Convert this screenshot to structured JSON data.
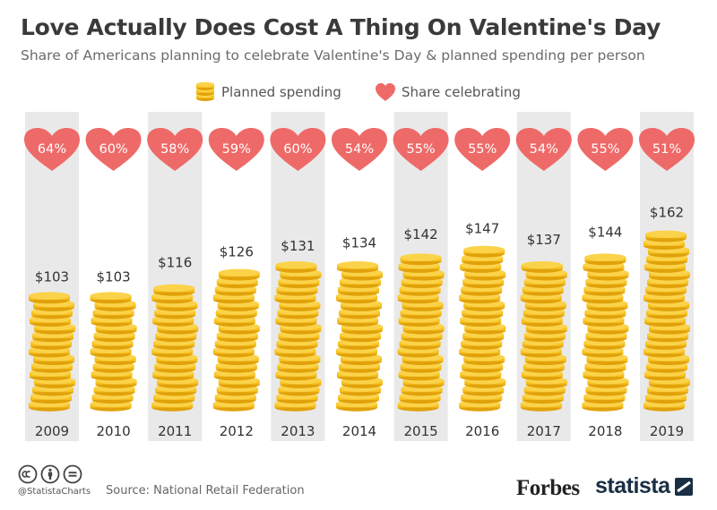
{
  "title": "Love Actually Does Cost A Thing On Valentine's Day",
  "subtitle": "Share of Americans planning to celebrate Valentine's Day & planned spending per person",
  "legend": {
    "spending_label": "Planned spending",
    "share_label": "Share celebrating",
    "spending_icon": "coin-stack-icon",
    "share_icon": "heart-icon"
  },
  "colors": {
    "heart": "#ee6a68",
    "coin": "#f6bf1e",
    "coin_dark": "#e0a10a",
    "column_shade": "#e9e9e9",
    "text": "#333333"
  },
  "chart_data": {
    "type": "bar",
    "categories": [
      "2009",
      "2010",
      "2011",
      "2012",
      "2013",
      "2014",
      "2015",
      "2016",
      "2017",
      "2018",
      "2019"
    ],
    "series": [
      {
        "name": "Planned spending",
        "values": [
          103,
          103,
          116,
          126,
          131,
          134,
          142,
          147,
          137,
          144,
          162
        ],
        "labels": [
          "$103",
          "$103",
          "$116",
          "$126",
          "$131",
          "$134",
          "$142",
          "$147",
          "$137",
          "$144",
          "$162"
        ]
      },
      {
        "name": "Share celebrating",
        "values": [
          64,
          60,
          58,
          59,
          60,
          54,
          55,
          55,
          54,
          55,
          51
        ],
        "labels": [
          "64%",
          "60%",
          "58%",
          "59%",
          "60%",
          "54%",
          "55%",
          "55%",
          "54%",
          "55%",
          "51%"
        ]
      }
    ],
    "legend_position": "top",
    "grid": false,
    "shaded_columns": [
      "2009",
      "2011",
      "2013",
      "2015",
      "2017",
      "2019"
    ]
  },
  "footer": {
    "handle": "@StatistaCharts",
    "source": "Source: National Retail Federation",
    "forbes_logo": "Forbes",
    "statista_logo": "statista",
    "license_icons": [
      "cc-icon",
      "by-icon",
      "nd-icon"
    ]
  }
}
